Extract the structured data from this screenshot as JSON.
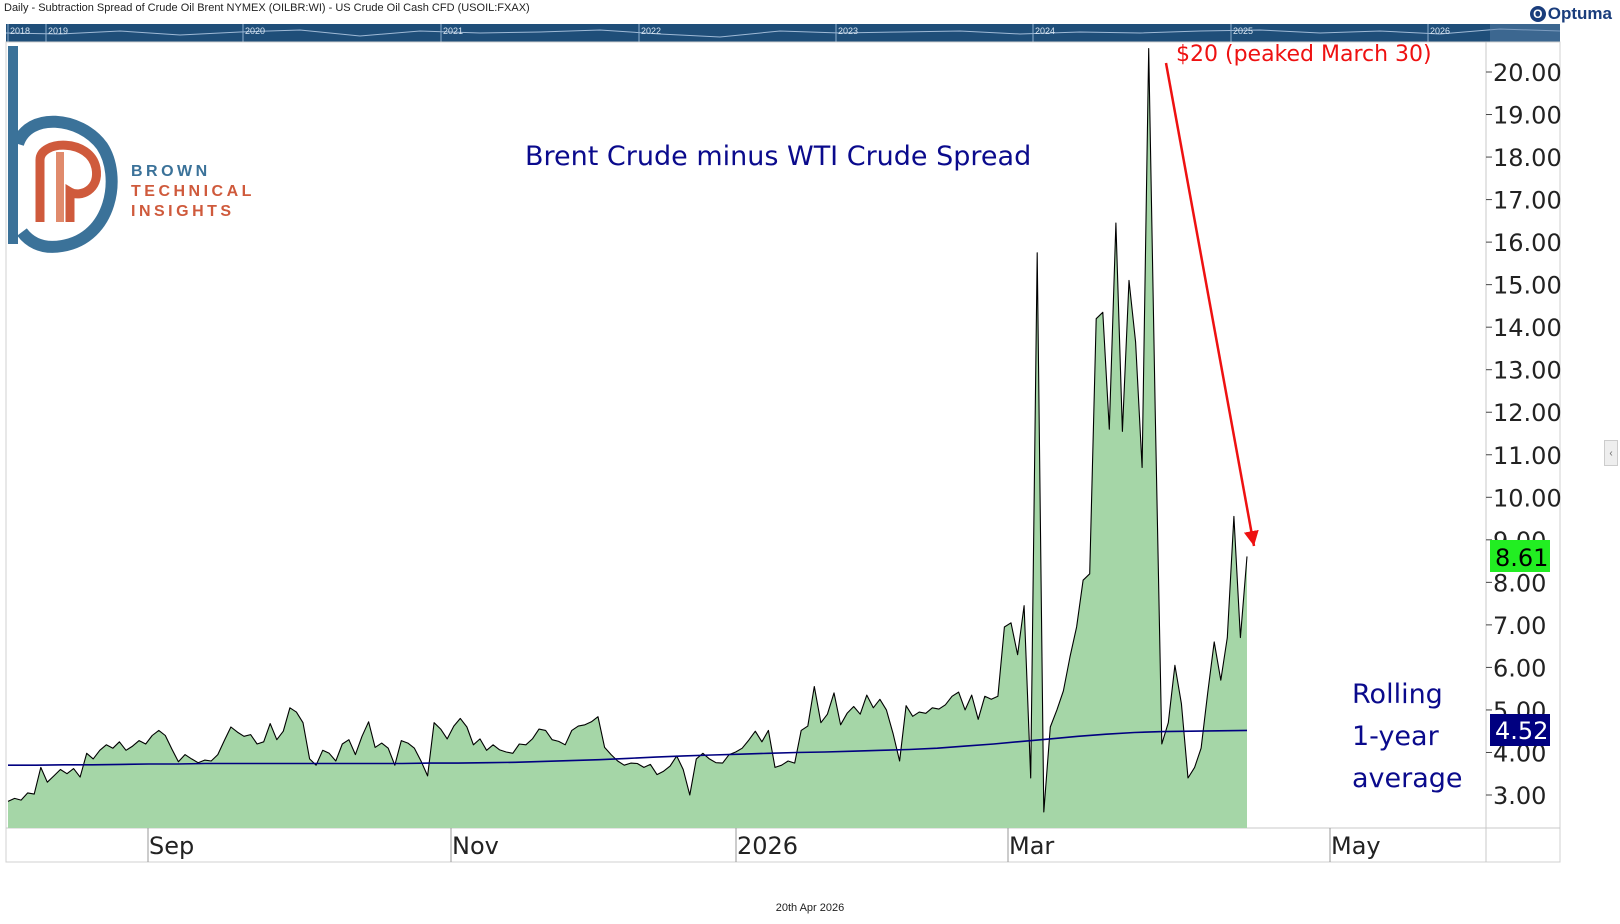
{
  "header": {
    "description": "Daily - Subtraction Spread of Crude Oil Brent NYMEX (OILBR:WI) - US Crude Oil Cash CFD (USOIL:FXAX)",
    "app_name": "Optuma",
    "app_icon": "optuma-logo-icon"
  },
  "footer": {
    "date": "20th Apr 2026"
  },
  "logo": {
    "line1": "BROWN",
    "line2": "TECHNICAL",
    "line3": "INSIGHTS"
  },
  "navigator": {
    "years": [
      "2018",
      "2019",
      "2020",
      "2021",
      "2022",
      "2023",
      "2024",
      "2025",
      "2026"
    ]
  },
  "colors": {
    "area_fill": "#a5d6a7",
    "line": "#000000",
    "rolling": "#000080",
    "annotation": "#ee1111",
    "last_value_badge": "#22ee22",
    "rolling_badge": "#000080",
    "navigator": "#1f4e79"
  },
  "chart_data": {
    "type": "area",
    "title": "Brent Crude minus WTI Crude Spread",
    "x_tick_labels": [
      "Sep",
      "Nov",
      "2026",
      "Mar",
      "May"
    ],
    "ylim": [
      2.0,
      20.6
    ],
    "y_tick_labels": [
      "3.00",
      "4.00",
      "5.00",
      "6.00",
      "7.00",
      "8.00",
      "9.00",
      "10.00",
      "11.00",
      "12.00",
      "13.00",
      "14.00",
      "15.00",
      "16.00",
      "17.00",
      "18.00",
      "19.00",
      "20.00"
    ],
    "grid": false,
    "annotation": "$20 (peaked March 30)",
    "last_value": "8.61",
    "rolling_value": "4.52",
    "rolling_label_lines": [
      "Rolling",
      "1-year",
      "average"
    ],
    "series": [
      {
        "values": [
          2.85,
          2.92,
          2.88,
          3.05,
          3.02,
          3.65,
          3.3,
          3.45,
          3.6,
          3.5,
          3.62,
          3.42,
          3.98,
          3.85,
          4.05,
          4.18,
          4.1,
          4.25,
          4.05,
          4.15,
          4.28,
          4.2,
          4.4,
          4.52,
          4.4,
          4.08,
          3.78,
          3.95,
          3.85,
          3.76,
          3.82,
          3.8,
          3.95,
          4.28,
          4.6,
          4.48,
          4.38,
          4.42,
          4.2,
          4.25,
          4.68,
          4.3,
          4.5,
          5.05,
          4.95,
          4.7,
          3.85,
          3.7,
          4.05,
          3.98,
          3.8,
          4.2,
          4.3,
          3.95,
          4.38,
          4.72,
          4.12,
          4.22,
          4.1,
          3.7,
          4.28,
          4.22,
          4.1,
          3.8,
          3.45,
          4.7,
          4.55,
          4.32,
          4.62,
          4.8,
          4.6,
          4.18,
          4.32,
          4.05,
          4.18,
          4.06,
          4.01,
          3.98,
          4.2,
          4.18,
          4.32,
          4.55,
          4.52,
          4.3,
          4.26,
          4.18,
          4.52,
          4.62,
          4.65,
          4.72,
          4.84,
          4.12,
          3.95,
          3.8,
          3.7,
          3.75,
          3.74,
          3.65,
          3.72,
          3.48,
          3.56,
          3.68,
          3.92,
          3.6,
          3.0,
          3.85,
          3.98,
          3.85,
          3.76,
          3.75,
          3.95,
          4.01,
          4.1,
          4.29,
          4.5,
          4.25,
          4.52,
          3.65,
          3.7,
          3.8,
          3.75,
          4.52,
          4.62,
          5.55,
          4.7,
          4.9,
          5.4,
          4.65,
          4.92,
          5.08,
          4.9,
          5.35,
          5.05,
          5.25,
          5.0,
          4.45,
          3.8,
          5.1,
          4.85,
          4.95,
          4.92,
          5.05,
          5.02,
          5.12,
          5.32,
          5.42,
          5.0,
          5.35,
          4.78,
          5.32,
          5.25,
          5.32,
          6.95,
          7.05,
          6.3,
          7.45,
          3.4,
          15.75,
          2.6,
          4.6,
          5.0,
          5.45,
          6.25,
          6.95,
          8.05,
          8.2,
          14.2,
          14.35,
          11.6,
          16.45,
          11.55,
          15.1,
          13.65,
          10.7,
          20.55,
          12.05,
          4.2,
          4.7,
          6.05,
          5.15,
          3.4,
          3.65,
          4.1,
          5.4,
          6.6,
          5.7,
          6.7,
          9.55,
          6.7,
          8.61
        ]
      },
      {
        "values": [
          3.7,
          3.7,
          3.71,
          3.71,
          3.72,
          3.73,
          3.73,
          3.74,
          3.74,
          3.74,
          3.74,
          3.74,
          3.74,
          3.74,
          3.74,
          3.75,
          3.75,
          3.76,
          3.77,
          3.79,
          3.81,
          3.83,
          3.86,
          3.89,
          3.92,
          3.94,
          3.96,
          3.98,
          4.0,
          4.01,
          4.03,
          4.05,
          4.07,
          4.1,
          4.15,
          4.2,
          4.26,
          4.32,
          4.38,
          4.43,
          4.47,
          4.49,
          4.5,
          4.51,
          4.52
        ]
      }
    ]
  }
}
